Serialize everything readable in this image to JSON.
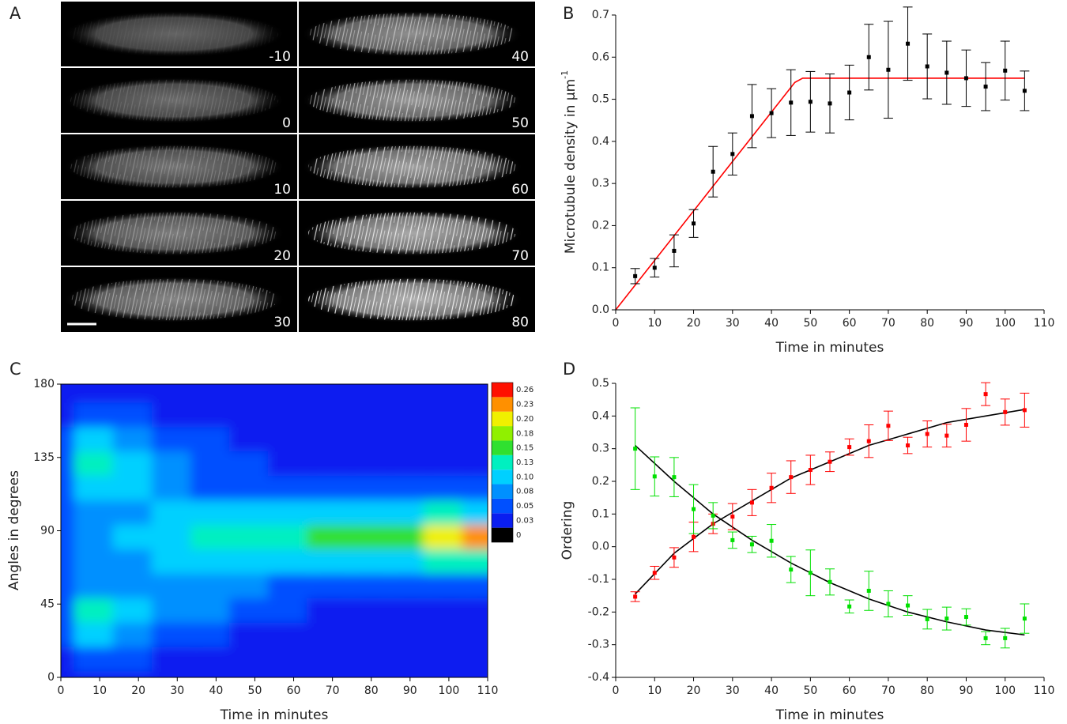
{
  "chart_data": [
    {
      "type": "image_grid",
      "panel": "A",
      "frames": [
        "-10",
        "0",
        "10",
        "20",
        "30",
        "40",
        "50",
        "60",
        "70",
        "80"
      ]
    },
    {
      "type": "errorbar",
      "panel": "B",
      "xlabel": "Time in minutes",
      "ylabel": "Microtubule density in µm",
      "ylabel_sup": "-1",
      "xlim": [
        0,
        110
      ],
      "xticks": [
        0,
        10,
        20,
        30,
        40,
        50,
        60,
        70,
        80,
        90,
        100,
        110
      ],
      "ylim": [
        0,
        0.7
      ],
      "yticks": [
        {
          "value": 0,
          "label": "0.0"
        },
        0.1,
        0.2,
        0.3,
        0.4,
        0.5,
        0.6,
        0.7
      ],
      "series": [
        {
          "color": "#000000",
          "x": [
            5,
            10,
            15,
            20,
            25,
            30,
            35,
            40,
            45,
            50,
            55,
            60,
            65,
            70,
            75,
            80,
            85,
            90,
            95,
            100,
            105
          ],
          "values": [
            0.08,
            0.1,
            0.14,
            0.205,
            0.328,
            0.37,
            0.46,
            0.467,
            0.492,
            0.494,
            0.49,
            0.516,
            0.6,
            0.57,
            0.632,
            0.578,
            0.563,
            0.55,
            0.53,
            0.568,
            0.52
          ],
          "errors": [
            0.018,
            0.022,
            0.038,
            0.033,
            0.06,
            0.05,
            0.075,
            0.058,
            0.078,
            0.072,
            0.07,
            0.065,
            0.078,
            0.115,
            0.087,
            0.077,
            0.075,
            0.067,
            0.057,
            0.07,
            0.047
          ]
        }
      ],
      "fits": [
        {
          "color": "#ff0000",
          "x": [
            0,
            46,
            48,
            105
          ],
          "values": [
            0,
            0.54,
            0.55,
            0.55
          ]
        }
      ]
    },
    {
      "type": "heatmap",
      "panel": "C",
      "xlabel": "Time in minutes",
      "ylabel": "Angles in degrees",
      "xlim": [
        0,
        110
      ],
      "xticks": [
        0,
        10,
        20,
        30,
        40,
        50,
        60,
        70,
        80,
        90,
        100,
        110
      ],
      "ylim": [
        0,
        180
      ],
      "yticks": [
        0,
        45,
        90,
        135,
        180
      ],
      "x": [
        0,
        10,
        20,
        30,
        40,
        50,
        60,
        70,
        80,
        90,
        100,
        110
      ],
      "y": [
        0,
        15,
        30,
        45,
        60,
        75,
        90,
        105,
        120,
        135,
        150,
        165,
        180
      ],
      "z": [
        [
          0.03,
          0.04,
          0.04,
          0.03,
          0.03,
          0.03,
          0.03,
          0.03,
          0.03,
          0.03,
          0.03,
          0.03
        ],
        [
          0.04,
          0.06,
          0.05,
          0.04,
          0.03,
          0.03,
          0.03,
          0.03,
          0.03,
          0.03,
          0.03,
          0.03
        ],
        [
          0.05,
          0.1,
          0.08,
          0.06,
          0.05,
          0.04,
          0.03,
          0.03,
          0.03,
          0.03,
          0.03,
          0.03
        ],
        [
          0.06,
          0.13,
          0.1,
          0.09,
          0.08,
          0.06,
          0.05,
          0.04,
          0.04,
          0.04,
          0.04,
          0.04
        ],
        [
          0.05,
          0.09,
          0.09,
          0.09,
          0.09,
          0.08,
          0.07,
          0.06,
          0.06,
          0.06,
          0.06,
          0.07
        ],
        [
          0.05,
          0.08,
          0.09,
          0.1,
          0.11,
          0.12,
          0.12,
          0.11,
          0.11,
          0.12,
          0.13,
          0.13
        ],
        [
          0.06,
          0.09,
          0.1,
          0.11,
          0.13,
          0.14,
          0.14,
          0.15,
          0.15,
          0.17,
          0.2,
          0.24
        ],
        [
          0.05,
          0.08,
          0.09,
          0.1,
          0.1,
          0.11,
          0.11,
          0.11,
          0.12,
          0.12,
          0.13,
          0.12
        ],
        [
          0.06,
          0.1,
          0.11,
          0.09,
          0.07,
          0.06,
          0.06,
          0.06,
          0.06,
          0.06,
          0.06,
          0.06
        ],
        [
          0.07,
          0.14,
          0.11,
          0.09,
          0.07,
          0.05,
          0.04,
          0.04,
          0.04,
          0.04,
          0.04,
          0.04
        ],
        [
          0.05,
          0.11,
          0.08,
          0.06,
          0.05,
          0.04,
          0.03,
          0.03,
          0.03,
          0.03,
          0.03,
          0.03
        ],
        [
          0.04,
          0.06,
          0.05,
          0.04,
          0.03,
          0.03,
          0.03,
          0.03,
          0.03,
          0.03,
          0.03,
          0.03
        ],
        [
          0.03,
          0.04,
          0.04,
          0.03,
          0.03,
          0.03,
          0.03,
          0.03,
          0.03,
          0.03,
          0.03,
          0.03
        ]
      ],
      "colorbar": {
        "ticks": [
          0,
          0.03,
          0.05,
          0.08,
          {
            "value": 0.1,
            "label": "0.10"
          },
          0.13,
          0.15,
          0.18,
          {
            "value": 0.2,
            "label": "0.20"
          },
          0.23,
          0.26
        ],
        "colors": [
          "#000000",
          "#0a1ef0",
          "#0050ff",
          "#0090ff",
          "#00d0ff",
          "#00f0c0",
          "#30e030",
          "#90f000",
          "#f0f000",
          "#ff9000",
          "#ff1000"
        ]
      }
    },
    {
      "type": "errorbar",
      "panel": "D",
      "xlabel": "Time in minutes",
      "ylabel": "Ordering",
      "xlim": [
        0,
        110
      ],
      "xticks": [
        0,
        10,
        20,
        30,
        40,
        50,
        60,
        70,
        80,
        90,
        100,
        110
      ],
      "ylim": [
        -0.4,
        0.5
      ],
      "yticks": [
        -0.4,
        -0.3,
        -0.2,
        -0.1,
        {
          "value": 0,
          "label": "0.0"
        },
        0.1,
        0.2,
        0.3,
        0.4,
        0.5
      ],
      "series": [
        {
          "color": "#ff0000",
          "x": [
            5,
            10,
            15,
            20,
            25,
            30,
            35,
            40,
            45,
            50,
            55,
            60,
            65,
            70,
            75,
            80,
            85,
            90,
            95,
            100,
            105
          ],
          "values": [
            -0.153,
            -0.08,
            -0.033,
            0.03,
            0.07,
            0.092,
            0.135,
            0.18,
            0.213,
            0.235,
            0.26,
            0.305,
            0.323,
            0.37,
            0.31,
            0.345,
            0.34,
            0.373,
            0.467,
            0.412,
            0.418
          ],
          "errors": [
            0.015,
            0.02,
            0.03,
            0.045,
            0.03,
            0.04,
            0.04,
            0.045,
            0.05,
            0.045,
            0.03,
            0.025,
            0.05,
            0.045,
            0.025,
            0.04,
            0.035,
            0.05,
            0.035,
            0.04,
            0.052
          ]
        },
        {
          "color": "#00e000",
          "x": [
            5,
            10,
            15,
            20,
            25,
            30,
            35,
            40,
            45,
            50,
            55,
            60,
            65,
            70,
            75,
            80,
            85,
            90,
            95,
            100,
            105
          ],
          "values": [
            0.3,
            0.215,
            0.213,
            0.115,
            0.095,
            0.02,
            0.007,
            0.018,
            -0.07,
            -0.08,
            -0.108,
            -0.183,
            -0.135,
            -0.175,
            -0.18,
            -0.222,
            -0.22,
            -0.215,
            -0.28,
            -0.28,
            -0.22
          ],
          "errors": [
            0.125,
            0.06,
            0.06,
            0.075,
            0.04,
            0.025,
            0.025,
            0.05,
            0.04,
            0.07,
            0.04,
            0.02,
            0.06,
            0.04,
            0.03,
            0.03,
            0.035,
            0.025,
            0.02,
            0.03,
            0.045
          ]
        }
      ],
      "fits": [
        {
          "color": "#000000",
          "x": [
            5,
            15,
            25,
            35,
            45,
            55,
            65,
            75,
            85,
            95,
            105
          ],
          "values": [
            -0.145,
            -0.02,
            0.07,
            0.14,
            0.21,
            0.26,
            0.31,
            0.345,
            0.38,
            0.4,
            0.42
          ]
        },
        {
          "color": "#000000",
          "x": [
            5,
            15,
            25,
            35,
            45,
            55,
            65,
            75,
            85,
            95,
            105
          ],
          "values": [
            0.31,
            0.2,
            0.1,
            0.02,
            -0.05,
            -0.11,
            -0.16,
            -0.2,
            -0.23,
            -0.255,
            -0.27
          ]
        }
      ]
    }
  ]
}
